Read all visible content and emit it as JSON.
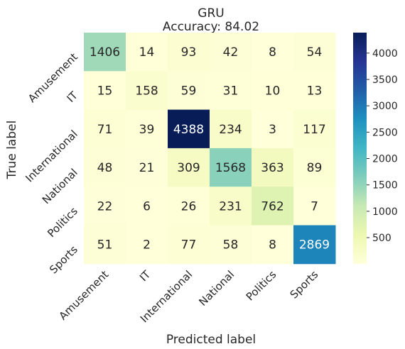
{
  "chart_data": {
    "type": "heatmap",
    "title": "GRU",
    "subtitle": "Accuracy: 84.02",
    "xlabel": "Predicted label",
    "ylabel": "True label",
    "x_categories": [
      "Amusement",
      "IT",
      "International",
      "National",
      "Politics",
      "Sports"
    ],
    "y_categories": [
      "Amusement",
      "IT",
      "International",
      "National",
      "Politics",
      "Sports"
    ],
    "values": [
      [
        1406,
        14,
        93,
        42,
        8,
        54
      ],
      [
        15,
        158,
        59,
        31,
        10,
        13
      ],
      [
        71,
        39,
        4388,
        234,
        3,
        117
      ],
      [
        48,
        21,
        309,
        1568,
        363,
        89
      ],
      [
        22,
        6,
        26,
        231,
        762,
        7
      ],
      [
        51,
        2,
        77,
        58,
        8,
        2869
      ]
    ],
    "colormap": "YlGnBu",
    "colorbar": {
      "min": 2,
      "max": 4388,
      "ticks": [
        500,
        1000,
        1500,
        2000,
        2500,
        3000,
        3500,
        4000
      ]
    },
    "grid": false,
    "legend": "colorbar-right"
  }
}
